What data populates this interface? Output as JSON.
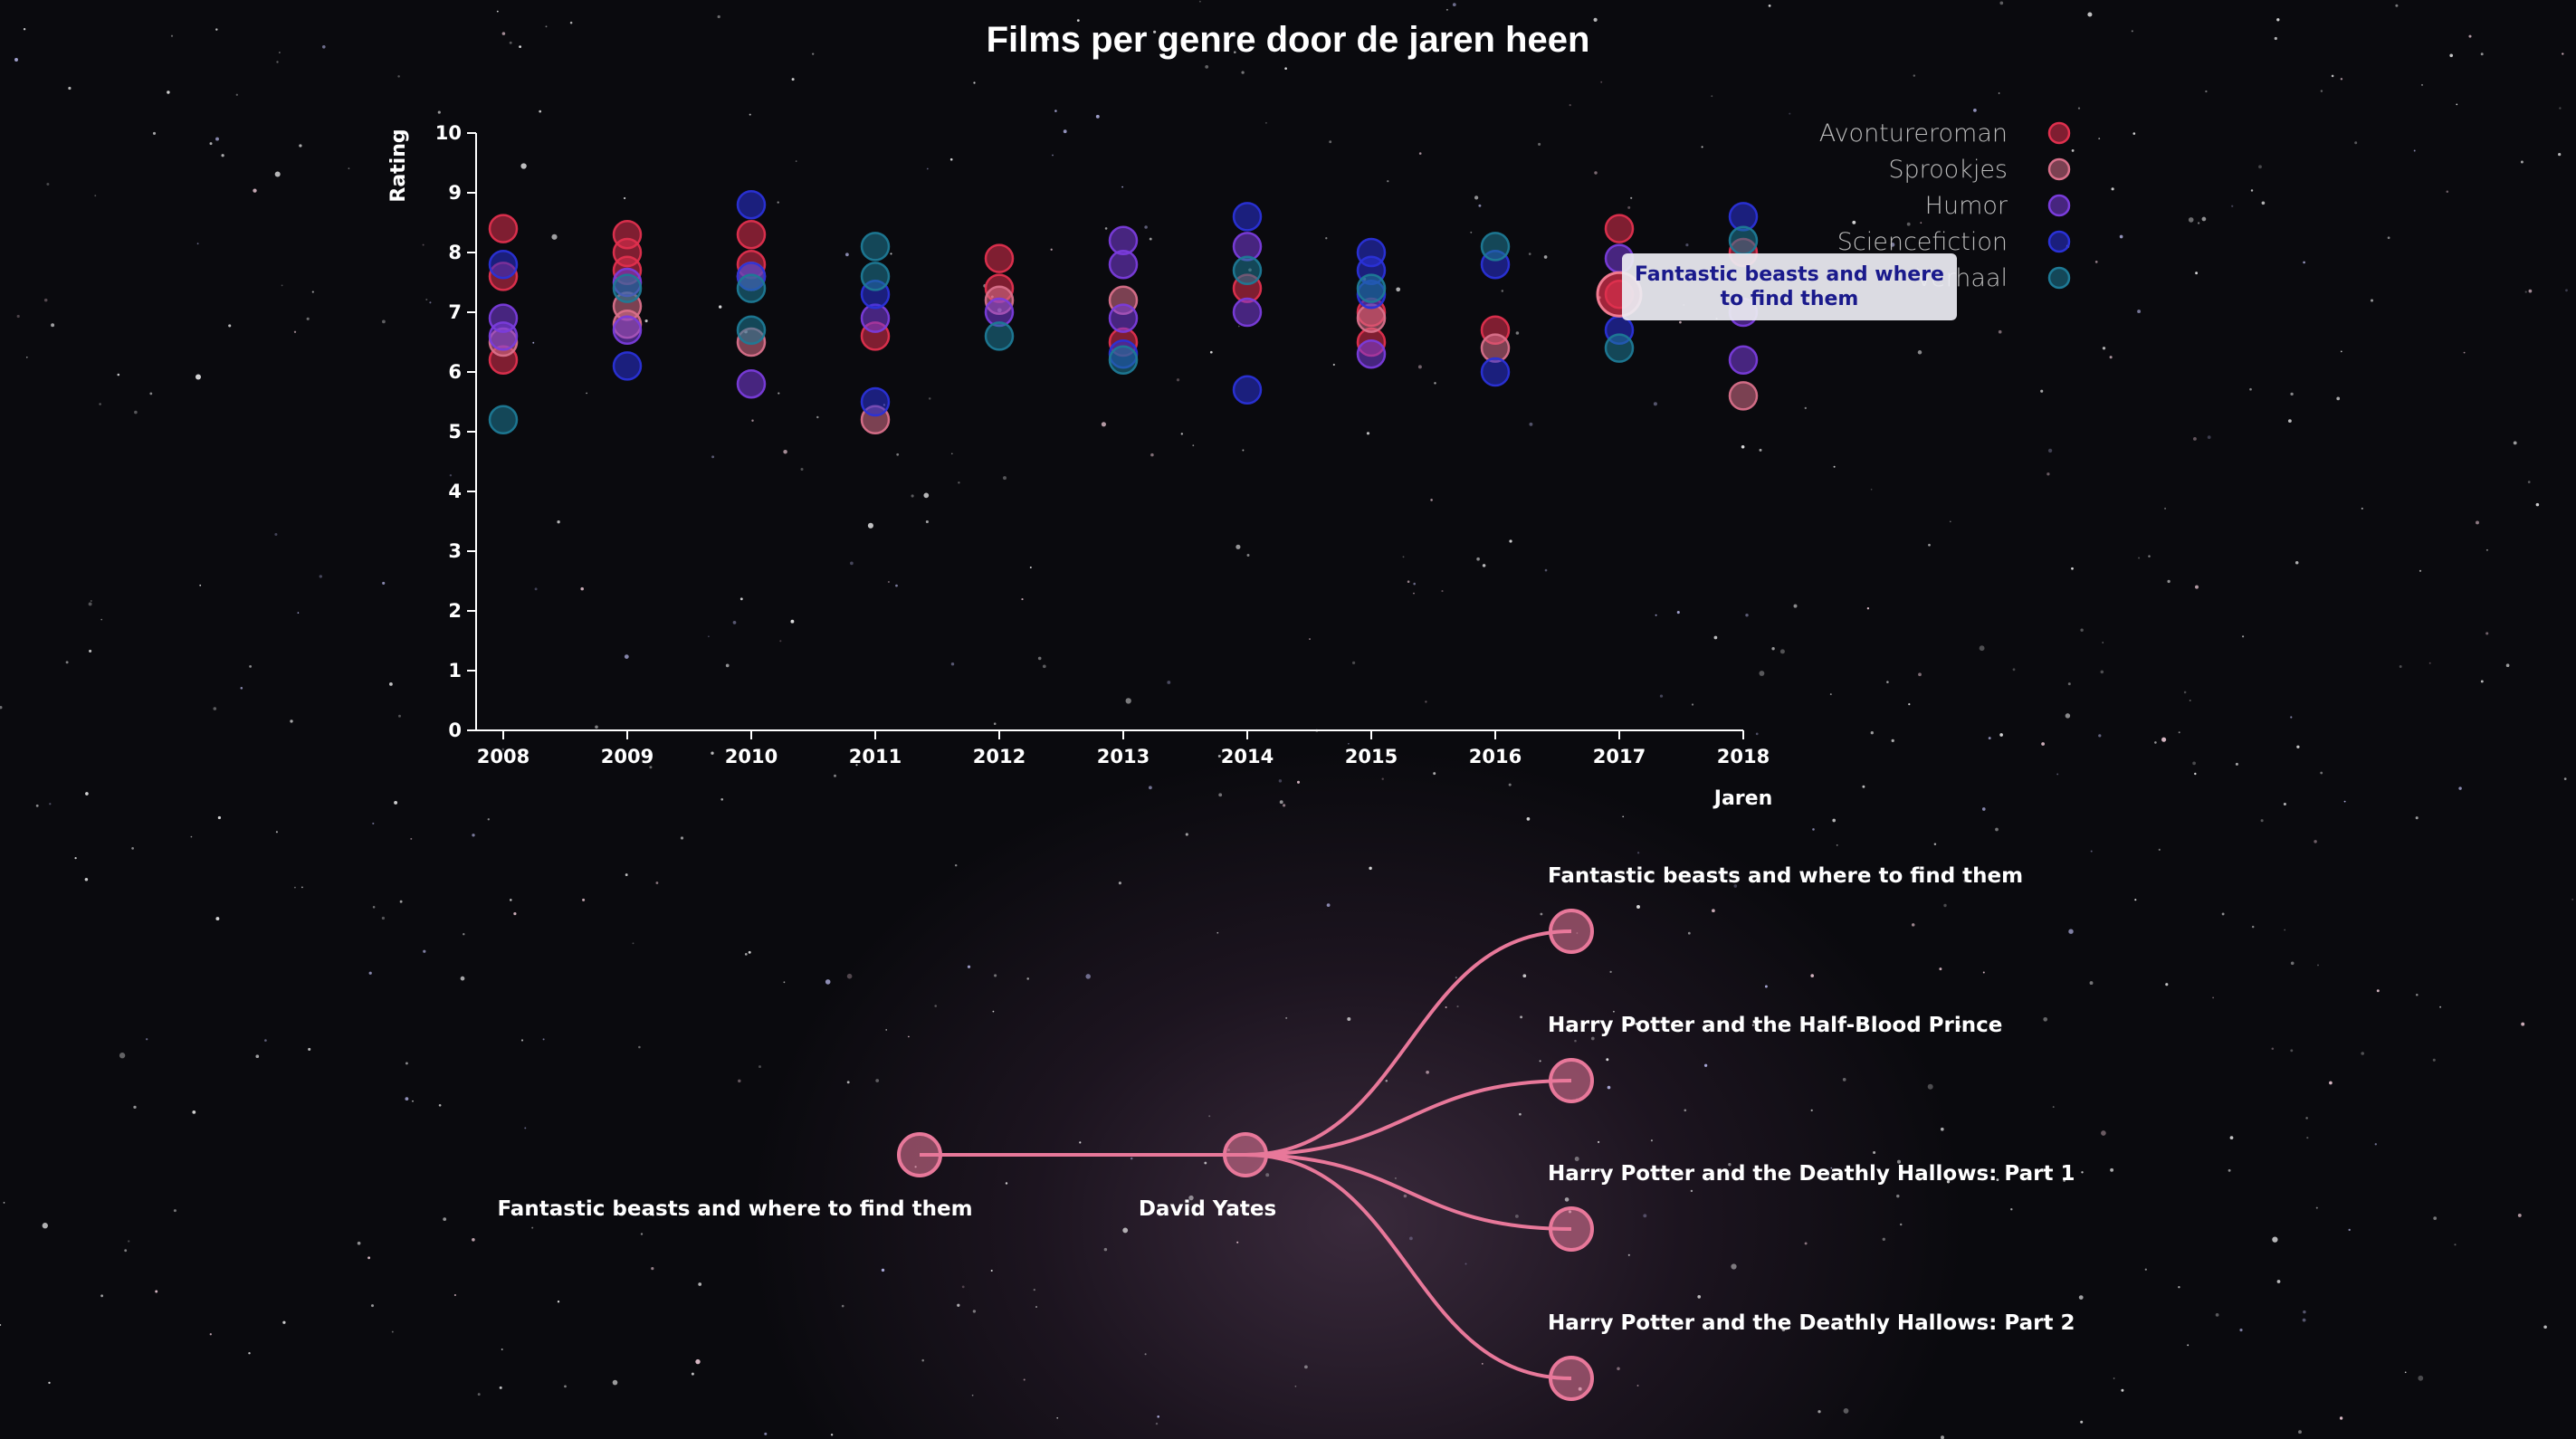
{
  "page": {
    "title": "Films per genre door de jaren heen"
  },
  "tooltip": {
    "text": "Fantastic beasts and where to find them"
  },
  "chart_data": {
    "type": "scatter",
    "title": "Films per genre door de jaren heen",
    "xlabel": "Jaren",
    "ylabel": "Rating",
    "xlim": [
      2008,
      2018
    ],
    "ylim": [
      0,
      10
    ],
    "x_ticks": [
      2008,
      2009,
      2010,
      2011,
      2012,
      2013,
      2014,
      2015,
      2016,
      2017,
      2018
    ],
    "y_ticks": [
      0,
      1,
      2,
      3,
      4,
      5,
      6,
      7,
      8,
      9,
      10
    ],
    "legend_position": "top-right",
    "series": [
      {
        "name": "Avontureroman",
        "color": "#e0304e",
        "points": [
          [
            2008,
            8.4
          ],
          [
            2008,
            7.6
          ],
          [
            2008,
            6.2
          ],
          [
            2009,
            8.3
          ],
          [
            2009,
            8.0
          ],
          [
            2009,
            7.7
          ],
          [
            2010,
            8.3
          ],
          [
            2010,
            7.8
          ],
          [
            2011,
            6.6
          ],
          [
            2012,
            7.9
          ],
          [
            2012,
            7.4
          ],
          [
            2013,
            6.5
          ],
          [
            2014,
            7.4
          ],
          [
            2015,
            6.5
          ],
          [
            2015,
            7.0
          ],
          [
            2016,
            6.7
          ],
          [
            2017,
            8.4
          ],
          [
            2017,
            7.3
          ],
          [
            2018,
            8.0
          ]
        ]
      },
      {
        "name": "Sprookjes",
        "color": "#d9708a",
        "points": [
          [
            2008,
            6.5
          ],
          [
            2009,
            7.1
          ],
          [
            2009,
            6.8
          ],
          [
            2010,
            6.5
          ],
          [
            2010,
            7.6
          ],
          [
            2011,
            5.2
          ],
          [
            2012,
            7.2
          ],
          [
            2013,
            7.2
          ],
          [
            2015,
            6.9
          ],
          [
            2016,
            6.4
          ],
          [
            2018,
            5.6
          ]
        ]
      },
      {
        "name": "Humor",
        "color": "#7a3cdc",
        "points": [
          [
            2008,
            6.9
          ],
          [
            2008,
            6.6
          ],
          [
            2009,
            7.5
          ],
          [
            2009,
            6.7
          ],
          [
            2010,
            5.8
          ],
          [
            2011,
            6.9
          ],
          [
            2012,
            7.0
          ],
          [
            2013,
            8.2
          ],
          [
            2013,
            7.8
          ],
          [
            2013,
            6.9
          ],
          [
            2014,
            8.1
          ],
          [
            2014,
            7.0
          ],
          [
            2015,
            6.3
          ],
          [
            2017,
            7.9
          ],
          [
            2018,
            6.2
          ],
          [
            2018,
            7.0
          ]
        ]
      },
      {
        "name": "Sciencefiction",
        "color": "#2a32d8",
        "points": [
          [
            2008,
            7.8
          ],
          [
            2009,
            6.1
          ],
          [
            2010,
            8.8
          ],
          [
            2010,
            7.6
          ],
          [
            2011,
            5.5
          ],
          [
            2011,
            7.3
          ],
          [
            2013,
            6.3
          ],
          [
            2014,
            8.6
          ],
          [
            2014,
            5.7
          ],
          [
            2015,
            7.3
          ],
          [
            2015,
            8.0
          ],
          [
            2015,
            7.7
          ],
          [
            2016,
            6.0
          ],
          [
            2016,
            7.8
          ],
          [
            2017,
            6.7
          ],
          [
            2018,
            8.6
          ]
        ]
      },
      {
        "name": "Verhaal",
        "color": "#1e7a96",
        "points": [
          [
            2008,
            5.2
          ],
          [
            2009,
            7.4
          ],
          [
            2010,
            6.7
          ],
          [
            2010,
            7.4
          ],
          [
            2011,
            7.6
          ],
          [
            2011,
            8.1
          ],
          [
            2012,
            6.6
          ],
          [
            2013,
            6.2
          ],
          [
            2014,
            7.7
          ],
          [
            2015,
            7.4
          ],
          [
            2016,
            8.1
          ],
          [
            2017,
            6.4
          ],
          [
            2018,
            8.2
          ]
        ]
      }
    ]
  },
  "tree": {
    "color": "#e8789a",
    "root_label": "Fantastic beasts and where to find them",
    "director_label": "David Yates",
    "children": [
      "Fantastic beasts and where to find them",
      "Harry Potter and the Half-Blood Prince",
      "Harry Potter and the Deathly Hallows: Part 1",
      "Harry Potter and the Deathly Hallows: Part 2"
    ]
  }
}
